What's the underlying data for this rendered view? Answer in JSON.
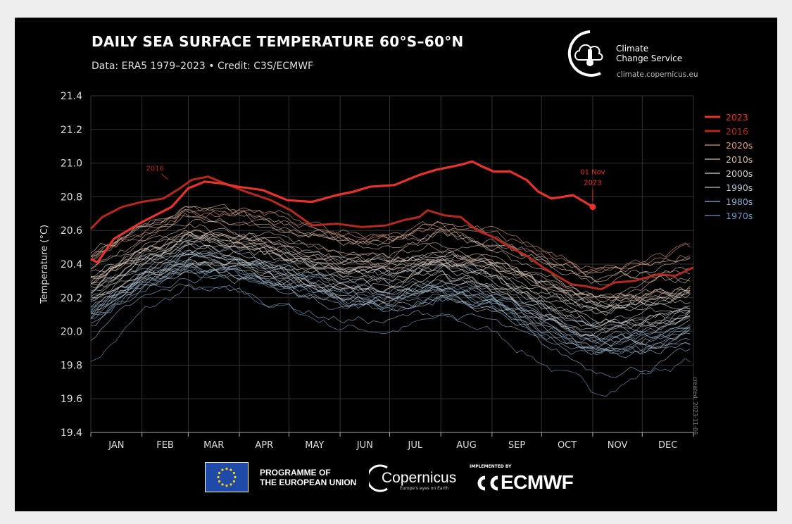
{
  "header": {
    "title": "DAILY SEA SURFACE TEMPERATURE 60°S–60°N",
    "subtitle": "Data: ERA5 1979–2023 • Credit: C3S/ECMWF"
  },
  "logo": {
    "name_line1": "Climate",
    "name_line2": "Change Service",
    "url": "climate.copernicus.eu"
  },
  "created_note": "created: 2023-11-06",
  "footer": {
    "eu_line1": "PROGRAMME OF",
    "eu_line2": "THE EUROPEAN UNION",
    "copernicus": "Copernicus",
    "copernicus_tagline": "Europe's eyes on Earth",
    "implemented_by": "IMPLEMENTED BY",
    "ecmwf": "ECMWF"
  },
  "colors": {
    "background": "#000000",
    "y2023": "#e8322c",
    "y2016": "#b5291f",
    "d2020s": "#d99b7c",
    "d2010s": "#d8b9a6",
    "d2000s": "#d9d2cc",
    "d1990s": "#b7c5d0",
    "d1980s": "#8eb0cd",
    "d1970s": "#6d99c0",
    "grid": "#333333"
  },
  "chart_data": {
    "type": "line",
    "title": "DAILY SEA SURFACE TEMPERATURE 60°S–60°N",
    "subtitle": "Data: ERA5 1979–2023 • Credit: C3S/ECMWF",
    "ylabel": "Temperature (°C)",
    "xlabel": "",
    "ylim": [
      19.4,
      21.4
    ],
    "yticks": [
      19.4,
      19.6,
      19.8,
      20.0,
      20.2,
      20.4,
      20.6,
      20.8,
      21.0,
      21.2,
      21.4
    ],
    "ytick_labels": [
      "19.4",
      "19.6",
      "19.8",
      "20.0",
      "20.2",
      "20.4",
      "20.6",
      "20.8",
      "21.0",
      "21.2",
      "21.4"
    ],
    "xlim": [
      1,
      366
    ],
    "month_labels": [
      "JAN",
      "FEB",
      "MAR",
      "APR",
      "MAY",
      "JUN",
      "JUL",
      "AUG",
      "SEP",
      "OCT",
      "NOV",
      "DEC"
    ],
    "grid": true,
    "legend_position": "right",
    "legend": [
      {
        "label": "2023",
        "color": "#e8322c"
      },
      {
        "label": "2016",
        "color": "#b5291f"
      },
      {
        "label": "2020s",
        "color": "#d99b7c"
      },
      {
        "label": "2010s",
        "color": "#d8b9a6"
      },
      {
        "label": "2000s",
        "color": "#d9d2cc"
      },
      {
        "label": "1990s",
        "color": "#b7c5d0"
      },
      {
        "label": "1980s",
        "color": "#8eb0cd"
      },
      {
        "label": "1970s",
        "color": "#6d99c0"
      }
    ],
    "annotations": [
      {
        "text": "2016",
        "x": 45,
        "y": 20.87
      },
      {
        "text": "01 Nov",
        "text2": "2023",
        "x": 305,
        "y": 20.74
      }
    ],
    "series": [
      {
        "name": "2023",
        "x": [
          1,
          5,
          15,
          32,
          50,
          60,
          70,
          80,
          90,
          105,
          120,
          135,
          150,
          160,
          170,
          185,
          200,
          210,
          220,
          225,
          232,
          238,
          245,
          255,
          265,
          272,
          280,
          287,
          293,
          300,
          305
        ],
        "y": [
          20.43,
          20.41,
          20.55,
          20.65,
          20.74,
          20.85,
          20.89,
          20.88,
          20.86,
          20.84,
          20.78,
          20.77,
          20.81,
          20.83,
          20.86,
          20.87,
          20.93,
          20.96,
          20.98,
          20.99,
          21.01,
          20.98,
          20.95,
          20.95,
          20.9,
          20.83,
          20.79,
          20.8,
          20.81,
          20.77,
          20.74
        ]
      },
      {
        "name": "2016",
        "x": [
          1,
          8,
          20,
          32,
          45,
          55,
          62,
          72,
          82,
          95,
          110,
          122,
          135,
          150,
          165,
          180,
          190,
          200,
          205,
          215,
          225,
          235,
          245,
          255,
          265,
          275,
          285,
          292,
          300,
          310,
          318,
          330,
          345,
          355,
          366
        ],
        "y": [
          20.61,
          20.68,
          20.74,
          20.77,
          20.79,
          20.85,
          20.9,
          20.92,
          20.88,
          20.83,
          20.78,
          20.72,
          20.63,
          20.64,
          20.62,
          20.63,
          20.66,
          20.68,
          20.72,
          20.69,
          20.68,
          20.6,
          20.56,
          20.5,
          20.45,
          20.38,
          20.32,
          20.28,
          20.27,
          20.25,
          20.29,
          20.3,
          20.34,
          20.33,
          20.38
        ]
      }
    ],
    "bands": [
      {
        "name": "2020s",
        "count": 3,
        "x": [
          1,
          32,
          60,
          91,
          121,
          152,
          182,
          213,
          244,
          274,
          305,
          335,
          366
        ],
        "y": [
          20.45,
          20.58,
          20.72,
          20.7,
          20.66,
          20.58,
          20.56,
          20.62,
          20.58,
          20.47,
          20.37,
          20.4,
          20.48
        ],
        "spread": 0.07
      },
      {
        "name": "2010s",
        "count": 10,
        "x": [
          1,
          32,
          60,
          91,
          121,
          152,
          182,
          213,
          244,
          274,
          305,
          335,
          366
        ],
        "y": [
          20.35,
          20.52,
          20.62,
          20.58,
          20.52,
          20.46,
          20.44,
          20.5,
          20.44,
          20.33,
          20.22,
          20.25,
          20.3
        ],
        "spread": 0.11
      },
      {
        "name": "2000s",
        "count": 10,
        "x": [
          1,
          32,
          60,
          91,
          121,
          152,
          182,
          213,
          244,
          274,
          305,
          335,
          366
        ],
        "y": [
          20.25,
          20.4,
          20.5,
          20.47,
          20.4,
          20.34,
          20.32,
          20.38,
          20.32,
          20.2,
          20.1,
          20.12,
          20.18
        ],
        "spread": 0.1
      },
      {
        "name": "1990s",
        "count": 10,
        "x": [
          1,
          32,
          60,
          91,
          121,
          152,
          182,
          213,
          244,
          274,
          305,
          335,
          366
        ],
        "y": [
          20.15,
          20.32,
          20.42,
          20.38,
          20.32,
          20.25,
          20.23,
          20.28,
          20.22,
          20.08,
          19.96,
          19.98,
          20.05
        ],
        "spread": 0.1
      },
      {
        "name": "1980s",
        "count": 10,
        "x": [
          1,
          32,
          60,
          91,
          121,
          152,
          182,
          213,
          244,
          274,
          305,
          335,
          366
        ],
        "y": [
          20.05,
          20.25,
          20.35,
          20.32,
          20.24,
          20.16,
          20.14,
          20.2,
          20.13,
          19.98,
          19.86,
          19.88,
          19.95
        ],
        "spread": 0.1
      },
      {
        "name": "1970s",
        "count": 1,
        "x": [
          1,
          32,
          60,
          91,
          121,
          152,
          182,
          213,
          244,
          274,
          305,
          335,
          366
        ],
        "y": [
          19.85,
          20.15,
          20.3,
          20.26,
          20.18,
          20.08,
          20.06,
          20.12,
          20.05,
          19.88,
          19.68,
          19.8,
          19.88
        ],
        "spread": 0.05
      }
    ]
  }
}
